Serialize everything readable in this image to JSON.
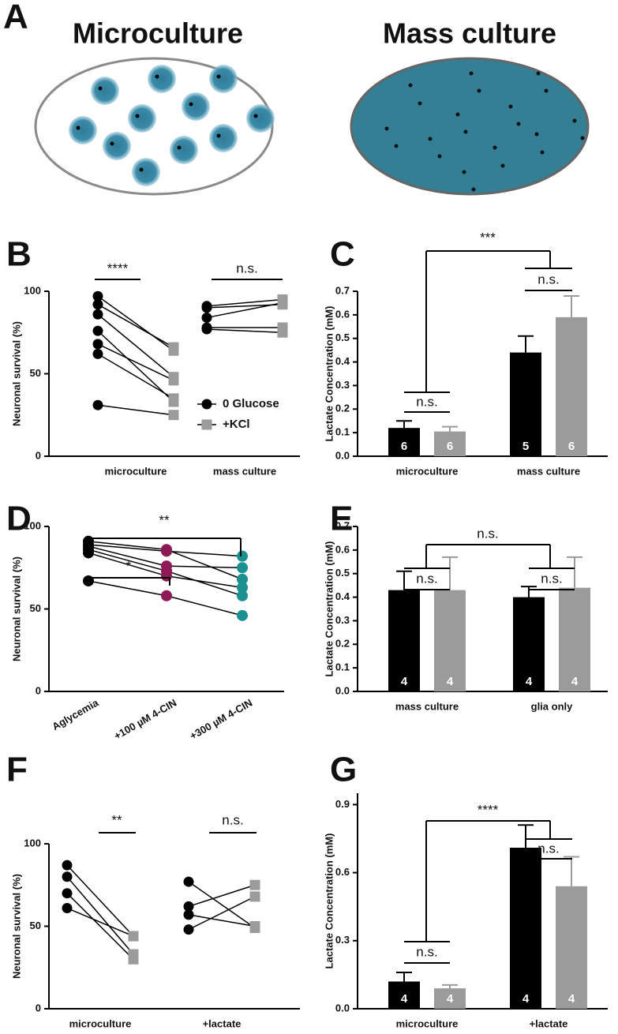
{
  "figure": {
    "letter": "A",
    "left_title": "Microculture",
    "right_title": "Mass culture"
  },
  "chart_data": [
    {
      "letter": "B",
      "type": "paired",
      "ylabel": "Neuronal survival (%)",
      "categories": [
        "microculture",
        "mass culture"
      ],
      "series": [
        {
          "name": "0 Glucose",
          "color": "#000000",
          "values": [
            [
              97,
              92,
              86,
              76,
              68,
              62,
              31
            ],
            [
              91,
              90,
              84,
              78,
              77
            ]
          ]
        },
        {
          "name": "+KCl",
          "color": "#9b9b9b",
          "values": [
            [
              64,
              66,
              48,
              33,
              46,
              35,
              25
            ],
            [
              95,
              92,
              93,
              78,
              75
            ]
          ]
        }
      ],
      "ylim": [
        0,
        100
      ],
      "yticks": [
        0,
        50,
        100
      ],
      "legend": true,
      "annotations": [
        "****",
        "n.s."
      ]
    },
    {
      "letter": "C",
      "type": "bar",
      "ylabel": "Lactate Concentration (mM)",
      "categories": [
        "microculture",
        "mass culture"
      ],
      "series": [
        {
          "color": "#000000",
          "values": [
            0.12,
            0.44
          ],
          "errors": [
            0.03,
            0.07
          ],
          "n": [
            6,
            5
          ]
        },
        {
          "color": "#9b9b9b",
          "values": [
            0.105,
            0.59
          ],
          "errors": [
            0.02,
            0.09
          ],
          "n": [
            6,
            6
          ]
        }
      ],
      "ylim": [
        0,
        0.7
      ],
      "yticks": [
        {
          "value": 0,
          "label": "0.0"
        },
        0.1,
        0.2,
        0.3,
        0.4,
        0.5,
        0.6,
        0.7
      ],
      "annotations": [
        "***",
        "n.s.",
        "n.s."
      ]
    },
    {
      "letter": "D",
      "type": "repeated",
      "ylabel": "Neuronal survival (%)",
      "categories": [
        "Aglycemia",
        "+100 µM 4-CIN",
        "+300 µM 4-CIN"
      ],
      "colors": [
        "#000000",
        "#8b1a56",
        "#1a9090"
      ],
      "values": [
        [
          91,
          86,
          68
        ],
        [
          89,
          85,
          82
        ],
        [
          88,
          76,
          75
        ],
        [
          86,
          73,
          58
        ],
        [
          84,
          70,
          63
        ],
        [
          67,
          58,
          46
        ]
      ],
      "ylim": [
        0,
        100
      ],
      "yticks": [
        0,
        50,
        100
      ],
      "annotations": [
        "**",
        "*"
      ]
    },
    {
      "letter": "E",
      "type": "bar",
      "ylabel": "Lactate Concentration (mM)",
      "categories": [
        "mass culture",
        "glia only"
      ],
      "series": [
        {
          "color": "#000000",
          "values": [
            0.43,
            0.4
          ],
          "errors": [
            0.08,
            0.045
          ],
          "n": [
            4,
            4
          ]
        },
        {
          "color": "#9b9b9b",
          "values": [
            0.43,
            0.44
          ],
          "errors": [
            0.14,
            0.13
          ],
          "n": [
            4,
            4
          ]
        }
      ],
      "ylim": [
        0,
        0.7
      ],
      "yticks": [
        {
          "value": 0,
          "label": "0.0"
        },
        0.1,
        0.2,
        0.3,
        0.4,
        0.5,
        0.6,
        0.7
      ],
      "annotations": [
        "n.s.",
        "n.s.",
        "n.s."
      ]
    },
    {
      "letter": "F",
      "type": "paired",
      "ylabel": "Neuronal survival (%)",
      "categories": [
        "microculture",
        "+lactate"
      ],
      "series": [
        {
          "color": "#000000",
          "values": [
            [
              87,
              80,
              70,
              61
            ],
            [
              77,
              62,
              57,
              48
            ]
          ]
        },
        {
          "color": "#9b9b9b",
          "values": [
            [
              44,
              33,
              30,
              44
            ],
            [
              49,
              75,
              50,
              68
            ]
          ]
        }
      ],
      "ylim": [
        0,
        100
      ],
      "yticks": [
        0,
        50,
        100
      ],
      "annotations": [
        "**",
        "n.s."
      ]
    },
    {
      "letter": "G",
      "type": "bar",
      "ylabel": "Lactate Concentration (mM)",
      "categories": [
        "microculture",
        "+lactate"
      ],
      "series": [
        {
          "color": "#000000",
          "values": [
            0.12,
            0.71
          ],
          "errors": [
            0.04,
            0.1
          ],
          "n": [
            4,
            4
          ]
        },
        {
          "color": "#9b9b9b",
          "values": [
            0.09,
            0.54
          ],
          "errors": [
            0.015,
            0.13
          ],
          "n": [
            4,
            4
          ]
        }
      ],
      "ylim": [
        0,
        0.95
      ],
      "yticks": [
        {
          "value": 0,
          "label": "0.0"
        },
        0.3,
        0.6,
        0.9
      ],
      "annotations": [
        "****",
        "n.s.",
        "n.s."
      ]
    }
  ]
}
